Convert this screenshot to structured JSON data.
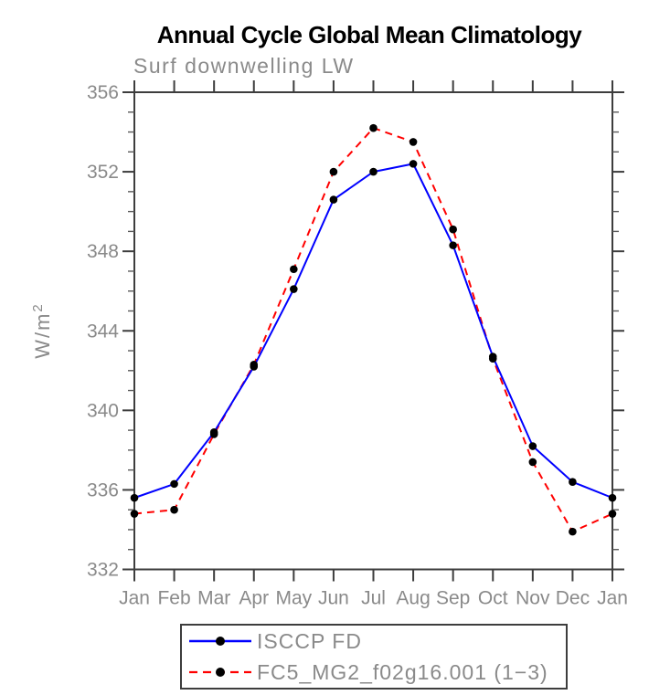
{
  "title": "Annual Cycle Global Mean Climatology",
  "subtitle": "Surf downwelling LW",
  "y_axis": {
    "label_base": "W/m",
    "label_exponent": "2"
  },
  "chart_data": {
    "type": "line",
    "x_categories": [
      "Jan",
      "Feb",
      "Mar",
      "Apr",
      "May",
      "Jun",
      "Jul",
      "Aug",
      "Sep",
      "Oct",
      "Nov",
      "Dec",
      "Jan"
    ],
    "ylim": [
      332,
      356
    ],
    "ytick_major_step": 4,
    "ytick_minor_step": 1,
    "grid": false,
    "legend_position": "bottom-center",
    "series": [
      {
        "name": "ISCCP FD",
        "color": "#0000ff",
        "line_style": "solid",
        "marker": "circle",
        "marker_color": "#000000",
        "values": [
          335.6,
          336.3,
          338.9,
          342.2,
          346.1,
          350.6,
          352.0,
          352.4,
          348.3,
          342.7,
          338.2,
          336.4,
          335.6
        ]
      },
      {
        "name": "FC5_MG2_f02g16.001 (1−3)",
        "color": "#ff0000",
        "line_style": "dashed",
        "marker": "circle",
        "marker_color": "#000000",
        "values": [
          334.8,
          335.0,
          338.8,
          342.3,
          347.1,
          352.0,
          354.2,
          353.5,
          349.1,
          342.6,
          337.4,
          333.9,
          334.8
        ]
      }
    ]
  },
  "colors": {
    "title_text": "#000000",
    "gray_text": "#8a8a8a",
    "axis": "#3d3d3d",
    "minor_tick": "#5a5a5a",
    "background": "#ffffff"
  }
}
